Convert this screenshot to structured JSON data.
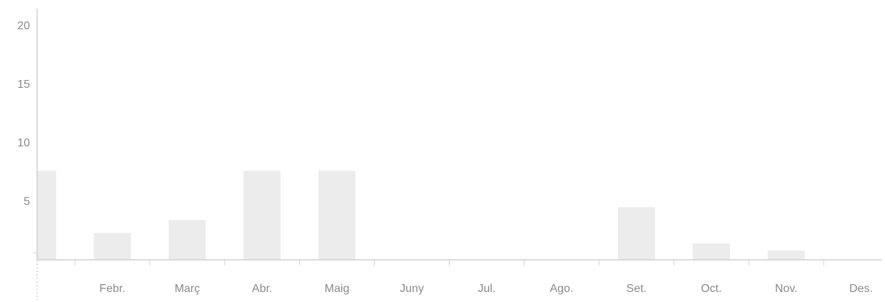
{
  "chart_data": {
    "type": "bar",
    "categories": [
      "",
      "Febr.",
      "Març",
      "Abr.",
      "Maig",
      "Juny",
      "Jul.",
      "Ago.",
      "Set.",
      "Oct.",
      "Nov.",
      "Des."
    ],
    "values": [
      7.6,
      2.3,
      3.4,
      7.6,
      7.6,
      0,
      0,
      0,
      4.5,
      1.4,
      0.8,
      0
    ],
    "title": "",
    "xlabel": "",
    "ylabel": "",
    "ylim": [
      0,
      21
    ],
    "yticks": [
      5,
      10,
      15,
      20
    ],
    "grid": false,
    "colors": {
      "bar": "#ececec",
      "axis": "#d0d0d0",
      "label": "#8a8a8a"
    }
  }
}
